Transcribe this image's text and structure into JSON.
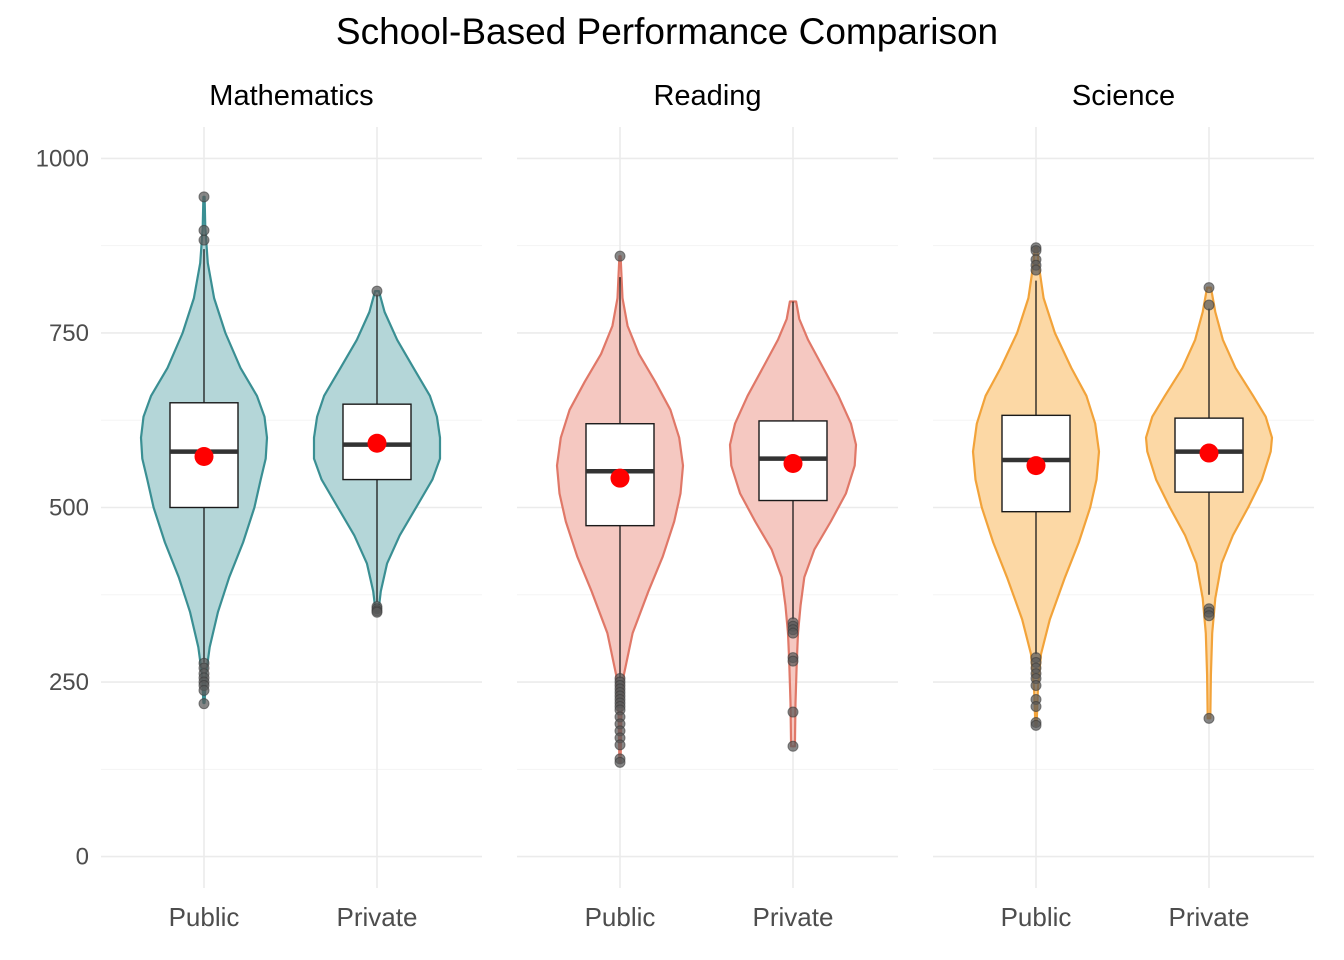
{
  "chart_data": {
    "type": "violin",
    "title": "School-Based Performance Comparison",
    "xlabel": "",
    "ylabel": "",
    "ylim": [
      -45,
      1045
    ],
    "yticks": [
      0,
      250,
      500,
      750,
      1000
    ],
    "categories": [
      "Public",
      "Private"
    ],
    "grid": true,
    "legend": "none",
    "mean_color": "#ff0000",
    "outlier_color": "#595959",
    "panels": [
      {
        "name": "Mathematics",
        "color": "#3a8f93",
        "fill": "#b4d6d8",
        "groups": [
          {
            "category": "Public",
            "q1": 500,
            "median": 580,
            "q3": 650,
            "mean": 573,
            "whisker_low": 278,
            "whisker_high": 870,
            "violin_min": 220,
            "violin_max": 945,
            "outliers": [
              945,
              897,
              883,
              277,
              270,
              262,
              256,
              250,
              245,
              238,
              219
            ],
            "density": [
              [
                220,
                0.01
              ],
              [
                260,
                0.03
              ],
              [
                300,
                0.09
              ],
              [
                350,
                0.22
              ],
              [
                400,
                0.4
              ],
              [
                450,
                0.62
              ],
              [
                500,
                0.8
              ],
              [
                540,
                0.9
              ],
              [
                570,
                0.98
              ],
              [
                600,
                1.0
              ],
              [
                630,
                0.96
              ],
              [
                660,
                0.84
              ],
              [
                700,
                0.58
              ],
              [
                750,
                0.34
              ],
              [
                800,
                0.16
              ],
              [
                850,
                0.06
              ],
              [
                900,
                0.02
              ],
              [
                945,
                0.01
              ]
            ]
          },
          {
            "category": "Private",
            "q1": 540,
            "median": 590,
            "q3": 648,
            "mean": 592,
            "whisker_low": 365,
            "whisker_high": 805,
            "violin_min": 350,
            "violin_max": 810,
            "outliers": [
              810,
              358,
              355,
              352,
              350
            ],
            "density": [
              [
                350,
                0.02
              ],
              [
                380,
                0.06
              ],
              [
                420,
                0.16
              ],
              [
                460,
                0.36
              ],
              [
                500,
                0.62
              ],
              [
                540,
                0.88
              ],
              [
                570,
                1.0
              ],
              [
                600,
                1.0
              ],
              [
                630,
                0.95
              ],
              [
                660,
                0.84
              ],
              [
                700,
                0.58
              ],
              [
                740,
                0.32
              ],
              [
                780,
                0.12
              ],
              [
                810,
                0.03
              ]
            ]
          }
        ]
      },
      {
        "name": "Reading",
        "color": "#e07868",
        "fill": "#f5c8c1",
        "groups": [
          {
            "category": "Public",
            "q1": 474,
            "median": 552,
            "q3": 620,
            "mean": 542,
            "whisker_low": 255,
            "whisker_high": 830,
            "violin_min": 135,
            "violin_max": 860,
            "outliers": [
              860,
              255,
              250,
              245,
              240,
              235,
              230,
              225,
              220,
              215,
              210,
              200,
              190,
              180,
              170,
              160,
              140,
              135
            ],
            "density": [
              [
                135,
                0.01
              ],
              [
                200,
                0.02
              ],
              [
                260,
                0.06
              ],
              [
                320,
                0.2
              ],
              [
                380,
                0.45
              ],
              [
                430,
                0.68
              ],
              [
                480,
                0.86
              ],
              [
                520,
                0.96
              ],
              [
                560,
                1.0
              ],
              [
                600,
                0.94
              ],
              [
                640,
                0.8
              ],
              [
                680,
                0.56
              ],
              [
                720,
                0.3
              ],
              [
                760,
                0.12
              ],
              [
                800,
                0.04
              ],
              [
                860,
                0.01
              ]
            ]
          },
          {
            "category": "Private",
            "q1": 510,
            "median": 570,
            "q3": 624,
            "mean": 563,
            "whisker_low": 340,
            "whisker_high": 795,
            "violin_min": 158,
            "violin_max": 795,
            "outliers": [
              335,
              330,
              325,
              320,
              285,
              280,
              207,
              158
            ],
            "density": [
              [
                158,
                0.03
              ],
              [
                220,
                0.04
              ],
              [
                280,
                0.06
              ],
              [
                320,
                0.08
              ],
              [
                360,
                0.12
              ],
              [
                400,
                0.18
              ],
              [
                440,
                0.34
              ],
              [
                480,
                0.6
              ],
              [
                520,
                0.84
              ],
              [
                560,
                0.98
              ],
              [
                590,
                1.0
              ],
              [
                620,
                0.92
              ],
              [
                660,
                0.72
              ],
              [
                700,
                0.48
              ],
              [
                740,
                0.24
              ],
              [
                770,
                0.1
              ],
              [
                795,
                0.05
              ]
            ]
          }
        ]
      },
      {
        "name": "Science",
        "color": "#f2a33a",
        "fill": "#fcd8a5",
        "groups": [
          {
            "category": "Public",
            "q1": 494,
            "median": 568,
            "q3": 632,
            "mean": 560,
            "whisker_low": 290,
            "whisker_high": 825,
            "violin_min": 188,
            "violin_max": 872,
            "outliers": [
              872,
              868,
              855,
              847,
              840,
              285,
              278,
              270,
              262,
              255,
              245,
              225,
              215,
              192,
              188
            ],
            "density": [
              [
                188,
                0.01
              ],
              [
                240,
                0.03
              ],
              [
                290,
                0.08
              ],
              [
                340,
                0.22
              ],
              [
                400,
                0.46
              ],
              [
                450,
                0.68
              ],
              [
                500,
                0.86
              ],
              [
                540,
                0.96
              ],
              [
                580,
                1.0
              ],
              [
                620,
                0.94
              ],
              [
                660,
                0.8
              ],
              [
                700,
                0.56
              ],
              [
                750,
                0.3
              ],
              [
                800,
                0.12
              ],
              [
                850,
                0.04
              ],
              [
                872,
                0.02
              ]
            ]
          },
          {
            "category": "Private",
            "q1": 522,
            "median": 580,
            "q3": 628,
            "mean": 578,
            "whisker_low": 375,
            "whisker_high": 785,
            "violin_min": 198,
            "violin_max": 815,
            "outliers": [
              815,
              790,
              355,
              350,
              345,
              198
            ],
            "density": [
              [
                198,
                0.02
              ],
              [
                260,
                0.03
              ],
              [
                320,
                0.05
              ],
              [
                370,
                0.1
              ],
              [
                420,
                0.2
              ],
              [
                460,
                0.38
              ],
              [
                500,
                0.62
              ],
              [
                540,
                0.84
              ],
              [
                580,
                0.98
              ],
              [
                600,
                1.0
              ],
              [
                630,
                0.9
              ],
              [
                660,
                0.7
              ],
              [
                700,
                0.42
              ],
              [
                740,
                0.22
              ],
              [
                780,
                0.1
              ],
              [
                815,
                0.03
              ]
            ]
          }
        ]
      }
    ]
  }
}
